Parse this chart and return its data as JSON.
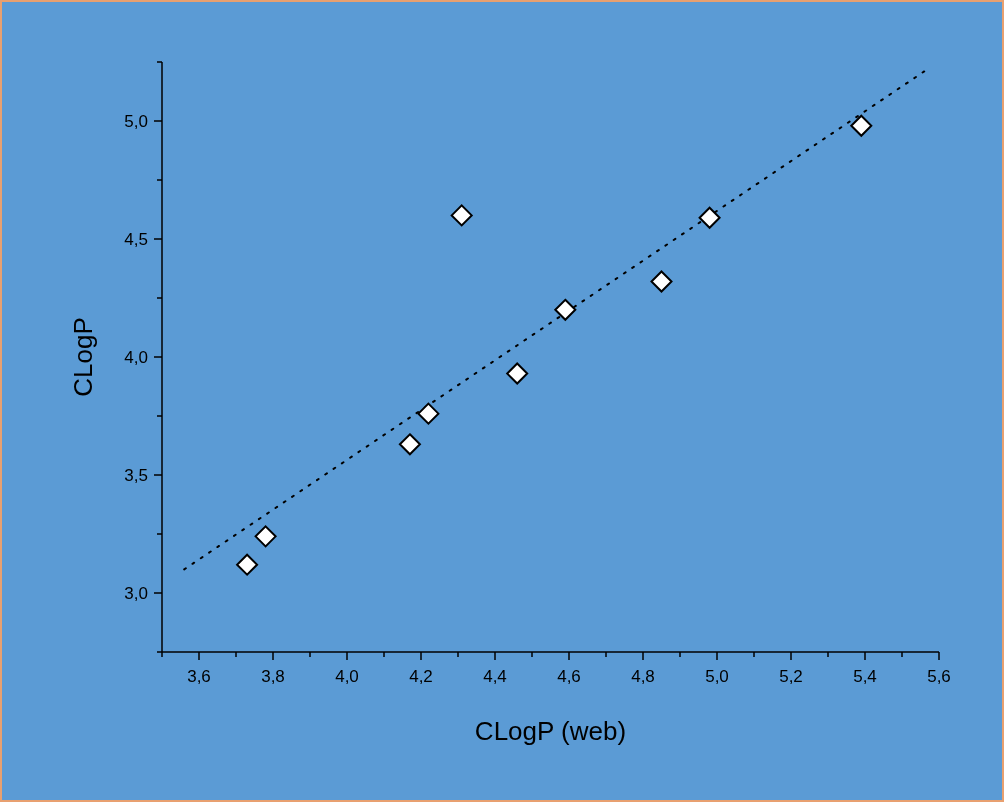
{
  "chart_data": {
    "type": "scatter",
    "xlabel": "CLogP (web)",
    "ylabel": "CLogP",
    "xlim": [
      3.5,
      5.6
    ],
    "ylim": [
      2.75,
      5.25
    ],
    "xticks": [
      {
        "value": 3.5,
        "label": null
      },
      {
        "value": 3.6,
        "label": "3,6"
      },
      {
        "value": 3.7,
        "label": null
      },
      {
        "value": 3.8,
        "label": "3,8"
      },
      {
        "value": 3.9,
        "label": null
      },
      {
        "value": 4.0,
        "label": "4,0"
      },
      {
        "value": 4.1,
        "label": null
      },
      {
        "value": 4.2,
        "label": "4,2"
      },
      {
        "value": 4.3,
        "label": null
      },
      {
        "value": 4.4,
        "label": "4,4"
      },
      {
        "value": 4.5,
        "label": null
      },
      {
        "value": 4.6,
        "label": "4,6"
      },
      {
        "value": 4.7,
        "label": null
      },
      {
        "value": 4.8,
        "label": "4,8"
      },
      {
        "value": 4.9,
        "label": null
      },
      {
        "value": 5.0,
        "label": "5,0"
      },
      {
        "value": 5.1,
        "label": null
      },
      {
        "value": 5.2,
        "label": "5,2"
      },
      {
        "value": 5.3,
        "label": null
      },
      {
        "value": 5.4,
        "label": "5,4"
      },
      {
        "value": 5.5,
        "label": null
      },
      {
        "value": 5.6,
        "label": "5,6"
      }
    ],
    "yticks": [
      {
        "value": 2.75,
        "label": null
      },
      {
        "value": 3.0,
        "label": "3,0"
      },
      {
        "value": 3.25,
        "label": null
      },
      {
        "value": 3.5,
        "label": "3,5"
      },
      {
        "value": 3.75,
        "label": null
      },
      {
        "value": 4.0,
        "label": "4,0"
      },
      {
        "value": 4.25,
        "label": null
      },
      {
        "value": 4.5,
        "label": "4,5"
      },
      {
        "value": 4.75,
        "label": null
      },
      {
        "value": 5.0,
        "label": "5,0"
      },
      {
        "value": 5.25,
        "label": null
      }
    ],
    "series": [
      {
        "color": "#ffffff",
        "marker": "diamond",
        "x": [
          3.73,
          3.78,
          4.17,
          4.22,
          4.31,
          4.46,
          4.59,
          4.85,
          4.98,
          5.39
        ],
        "values": [
          3.12,
          3.24,
          3.63,
          3.76,
          4.6,
          3.93,
          4.2,
          4.32,
          4.59,
          4.98
        ]
      },
      {
        "type": "line",
        "color": "#000000",
        "line_style": "dotted",
        "marker": "none",
        "x": [
          3.56,
          5.56
        ],
        "values": [
          3.1,
          5.21
        ]
      }
    ]
  }
}
